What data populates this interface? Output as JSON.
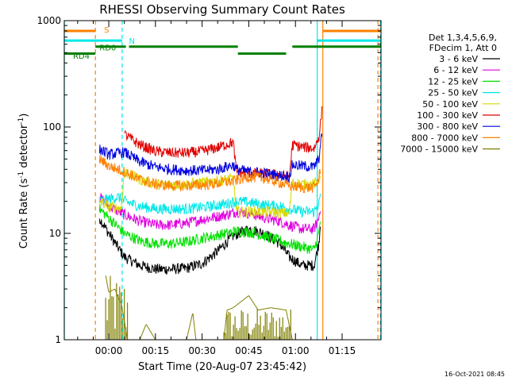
{
  "chart_data": {
    "type": "line",
    "title": "RHESSI Observing Summary Count Rates",
    "xlabel": "Start Time (20-Aug-07 23:45:42)",
    "ylabel": "Count Rate (s⁻¹ detector⁻¹)",
    "ylabel_main": "Count Rate (s",
    "ylabel_sup1": "-1",
    "ylabel_mid": " detector",
    "ylabel_sup2": "-1",
    "ylabel_end": ")",
    "y_scale": "log",
    "ylim": [
      1,
      1000
    ],
    "xlim_minutes": [
      -14.3,
      87.5
    ],
    "x_ticks": [
      {
        "minute": 0,
        "label": "00:00"
      },
      {
        "minute": 15,
        "label": "00:15"
      },
      {
        "minute": 30,
        "label": "00:30"
      },
      {
        "minute": 45,
        "label": "00:45"
      },
      {
        "minute": 60,
        "label": "01:00"
      },
      {
        "minute": 75,
        "label": "01:15"
      }
    ],
    "y_ticks": [
      {
        "value": 1,
        "label": "1"
      },
      {
        "value": 10,
        "label": "10"
      },
      {
        "value": 100,
        "label": "100"
      },
      {
        "value": 1000,
        "label": "1000"
      }
    ],
    "grid": false,
    "legend_position": "right",
    "legend_header": [
      "Det 1,3,4,5,6,9,",
      "FDecim 1, Att 0"
    ],
    "timestamp": "16-Oct-2021 08:45",
    "series": [
      {
        "name": "3 - 6 keV",
        "color": "#000000",
        "points": [
          [
            -3,
            14
          ],
          [
            0,
            10
          ],
          [
            5,
            6
          ],
          [
            10,
            5
          ],
          [
            15,
            4.6
          ],
          [
            20,
            4.6
          ],
          [
            25,
            4.7
          ],
          [
            30,
            5.2
          ],
          [
            35,
            6.8
          ],
          [
            40,
            9.5
          ],
          [
            45,
            11
          ],
          [
            50,
            10
          ],
          [
            55,
            8
          ],
          [
            58,
            6
          ],
          [
            62,
            5
          ],
          [
            66,
            5
          ],
          [
            67.5,
            8
          ],
          [
            68,
            12
          ]
        ]
      },
      {
        "name": "6 - 12 keV",
        "color": "#e000e0",
        "points": [
          [
            -3,
            22
          ],
          [
            0,
            18
          ],
          [
            5,
            15
          ],
          [
            10,
            13
          ],
          [
            15,
            12
          ],
          [
            20,
            12
          ],
          [
            25,
            12.5
          ],
          [
            30,
            13.5
          ],
          [
            38,
            15
          ],
          [
            41,
            16
          ],
          [
            45,
            15.5
          ],
          [
            50,
            14
          ],
          [
            55,
            13
          ],
          [
            58,
            12
          ],
          [
            62,
            11
          ],
          [
            66,
            11
          ],
          [
            67.5,
            14
          ],
          [
            68,
            18
          ]
        ]
      },
      {
        "name": "12 - 25 keV",
        "color": "#00e000",
        "points": [
          [
            -3,
            17
          ],
          [
            0,
            14
          ],
          [
            5,
            10
          ],
          [
            10,
            8.5
          ],
          [
            15,
            8
          ],
          [
            20,
            8
          ],
          [
            25,
            8.3
          ],
          [
            30,
            9
          ],
          [
            38,
            10
          ],
          [
            41,
            10.5
          ],
          [
            45,
            10.3
          ],
          [
            50,
            9.5
          ],
          [
            55,
            8.5
          ],
          [
            58,
            8
          ],
          [
            62,
            7.5
          ],
          [
            66,
            7
          ],
          [
            67.5,
            10
          ],
          [
            68,
            13
          ]
        ]
      },
      {
        "name": "25 - 50 keV",
        "color": "#00e8e8",
        "points": [
          [
            -3,
            20
          ],
          [
            0,
            21
          ],
          [
            3,
            22
          ],
          [
            5,
            20
          ],
          [
            10,
            18
          ],
          [
            15,
            17
          ],
          [
            20,
            17
          ],
          [
            25,
            17
          ],
          [
            30,
            17.5
          ],
          [
            38,
            19
          ],
          [
            41,
            20
          ],
          [
            45,
            19.5
          ],
          [
            50,
            18.5
          ],
          [
            55,
            18
          ],
          [
            58,
            17
          ],
          [
            62,
            16
          ],
          [
            66,
            16
          ],
          [
            67.5,
            19
          ],
          [
            68,
            22
          ]
        ]
      },
      {
        "name": "50 - 100 keV",
        "color": "#d8d800",
        "points": [
          [
            -3,
            20
          ],
          [
            0,
            18
          ],
          [
            4,
            17
          ],
          [
            5,
            38
          ],
          [
            10,
            32
          ],
          [
            15,
            29
          ],
          [
            20,
            28.5
          ],
          [
            25,
            29
          ],
          [
            30,
            30
          ],
          [
            38,
            32
          ],
          [
            40,
            33
          ],
          [
            41,
            16
          ],
          [
            45,
            16
          ],
          [
            50,
            16
          ],
          [
            55,
            15.5
          ],
          [
            58,
            15.5
          ],
          [
            59,
            30
          ],
          [
            62,
            29
          ],
          [
            66,
            29
          ],
          [
            67.5,
            32
          ],
          [
            68,
            38
          ]
        ]
      },
      {
        "name": "100 - 300 keV",
        "color": "#e00000",
        "points": [
          [
            5,
            85
          ],
          [
            10,
            68
          ],
          [
            15,
            59
          ],
          [
            20,
            57
          ],
          [
            25,
            57
          ],
          [
            30,
            59
          ],
          [
            35,
            64
          ],
          [
            40,
            72
          ],
          [
            41,
            38
          ],
          [
            45,
            37
          ],
          [
            50,
            36
          ],
          [
            55,
            35
          ],
          [
            58,
            34
          ],
          [
            59,
            68
          ],
          [
            62,
            65
          ],
          [
            66,
            63
          ],
          [
            67.5,
            80
          ],
          [
            68.5,
            140
          ]
        ]
      },
      {
        "name": "300 - 800 keV",
        "color": "#0000e0",
        "points": [
          [
            -3,
            62
          ],
          [
            0,
            55
          ],
          [
            5,
            58
          ],
          [
            10,
            47
          ],
          [
            15,
            42
          ],
          [
            20,
            40
          ],
          [
            25,
            39
          ],
          [
            30,
            39
          ],
          [
            35,
            40
          ],
          [
            40,
            44
          ],
          [
            41,
            40
          ],
          [
            45,
            38
          ],
          [
            50,
            37
          ],
          [
            55,
            35
          ],
          [
            58,
            34
          ],
          [
            59,
            44
          ],
          [
            62,
            43
          ],
          [
            66,
            42
          ],
          [
            67.5,
            50
          ],
          [
            68.5,
            85
          ]
        ]
      },
      {
        "name": "800 - 7000 keV",
        "color": "#ff8000",
        "points": [
          [
            -3,
            50
          ],
          [
            0,
            43
          ],
          [
            5,
            38
          ],
          [
            10,
            32
          ],
          [
            15,
            29
          ],
          [
            20,
            28
          ],
          [
            25,
            28
          ],
          [
            30,
            28.5
          ],
          [
            35,
            29.5
          ],
          [
            40,
            31
          ],
          [
            45,
            34
          ],
          [
            50,
            33
          ],
          [
            55,
            30
          ],
          [
            58,
            28
          ],
          [
            62,
            27
          ],
          [
            66,
            27
          ],
          [
            67.5,
            32
          ],
          [
            68,
            40
          ]
        ]
      },
      {
        "name": "7000 - 15000 keV",
        "color": "#808000",
        "points": [
          [
            -1,
            4
          ],
          [
            0,
            2.8
          ],
          [
            2,
            3.0
          ],
          [
            3,
            2.5
          ],
          [
            4,
            2.2
          ],
          [
            5,
            1.5
          ],
          [
            6,
            1
          ],
          [
            10,
            1
          ],
          [
            12,
            1.4
          ],
          [
            15,
            1
          ],
          [
            25,
            1
          ],
          [
            27,
            1.8
          ],
          [
            28,
            1
          ],
          [
            37,
            1
          ],
          [
            38,
            1.9
          ],
          [
            40,
            2.0
          ],
          [
            45,
            2.6
          ],
          [
            48,
            1.9
          ],
          [
            52,
            2.0
          ],
          [
            57,
            1.9
          ],
          [
            59,
            1
          ],
          [
            68,
            1
          ]
        ]
      }
    ],
    "fill_regions": [
      {
        "series": "7000 - 15000 keV",
        "x": [
          -1,
          6.5
        ],
        "y": [
          1,
          4
        ],
        "color": "#808000"
      },
      {
        "series": "7000 - 15000 keV",
        "x": [
          37,
          59
        ],
        "y": [
          1,
          2.0
        ],
        "color": "#808000"
      }
    ],
    "state_bars": [
      {
        "label": "S",
        "color": "#ff8000",
        "y": 800,
        "segments": [
          [
            -14.3,
            -4.3
          ],
          [
            68.8,
            87.5
          ]
        ]
      },
      {
        "label": "N",
        "color": "#00e8e8",
        "y": 650,
        "segments": [
          [
            -14.3,
            4.3
          ],
          [
            67,
            87.5
          ]
        ]
      },
      {
        "label": "RD0",
        "color": "#008000",
        "y": 570,
        "segments": [
          [
            -4.3,
            5.5
          ],
          [
            6.5,
            41.5
          ],
          [
            59,
            87.5
          ]
        ]
      },
      {
        "label": "RD4",
        "color": "#008000",
        "y": 490,
        "segments": [
          [
            -14.3,
            -4.3
          ],
          [
            41.5,
            57
          ]
        ]
      }
    ],
    "vlines": [
      {
        "minute": -14.3,
        "color": "#00e8e8",
        "style": "solid"
      },
      {
        "minute": -4.3,
        "color": "#ff8000",
        "style": "dashed"
      },
      {
        "minute": 4.3,
        "color": "#00e8e8",
        "style": "dashed"
      },
      {
        "minute": 67,
        "color": "#00e8e8",
        "style": "solid"
      },
      {
        "minute": 68.8,
        "color": "#ff8000",
        "style": "solid"
      },
      {
        "minute": 86.5,
        "color": "#ff8000",
        "style": "dashed"
      },
      {
        "minute": 87.3,
        "color": "#00e8e8",
        "style": "dashed"
      }
    ],
    "annotations": [
      {
        "text": "S",
        "color": "#ff8000",
        "minute": -1.5,
        "y": 830
      },
      {
        "text": "N",
        "color": "#00e8e8",
        "minute": 6.5,
        "y": 650
      },
      {
        "text": "RD0",
        "color": "#008000",
        "minute": -3,
        "y": 560
      },
      {
        "text": "RD4",
        "color": "#008000",
        "minute": -11.5,
        "y": 470
      }
    ]
  }
}
